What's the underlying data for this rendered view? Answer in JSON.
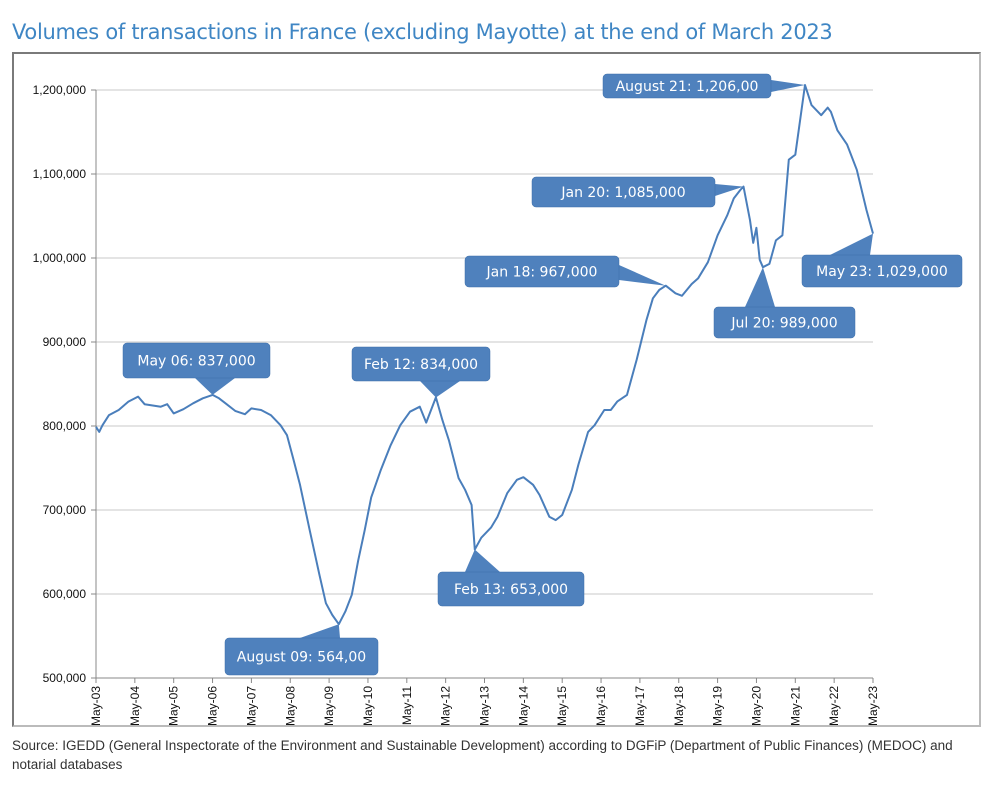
{
  "chart_data": {
    "type": "line",
    "title": "Volumes of transactions in France (excluding Mayotte) at the end of March 2023",
    "xlabel": "",
    "ylabel": "",
    "ylim": [
      500000,
      1200000
    ],
    "yticks": [
      "500,000",
      "600,000",
      "700,000",
      "800,000",
      "900,000",
      "1,000,000",
      "1,100,000",
      "1,200,000"
    ],
    "ytick_values": [
      500000,
      600000,
      700000,
      800000,
      900000,
      1000000,
      1100000,
      1200000
    ],
    "xticks": [
      "May-03",
      "May-04",
      "May-05",
      "May-06",
      "May-07",
      "May-08",
      "May-09",
      "May-10",
      "May-11",
      "May-12",
      "May-13",
      "May-14",
      "May-15",
      "May-16",
      "May-17",
      "May-18",
      "May-19",
      "May-20",
      "May-21",
      "May-22",
      "May-23"
    ],
    "grid": "horizontal",
    "line_color": "#4a7ebb",
    "series": [
      {
        "x": [
          "2003-05",
          "2003-06",
          "2003-07",
          "2003-09",
          "2003-12",
          "2004-03",
          "2004-06",
          "2004-08",
          "2005-01",
          "2005-03",
          "2005-05",
          "2005-08",
          "2005-11",
          "2006-02",
          "2006-05",
          "2006-07",
          "2006-09",
          "2006-12",
          "2007-03",
          "2007-05",
          "2007-08",
          "2007-11",
          "2008-02",
          "2008-04",
          "2008-06",
          "2008-08",
          "2008-11",
          "2009-02",
          "2009-04",
          "2009-06",
          "2009-08",
          "2009-10",
          "2009-12",
          "2010-02",
          "2010-04",
          "2010-06",
          "2010-09",
          "2010-12",
          "2011-03",
          "2011-06",
          "2011-09",
          "2011-11",
          "2012-02",
          "2012-04",
          "2012-06",
          "2012-09",
          "2012-11",
          "2013-01",
          "2013-02",
          "2013-04",
          "2013-07",
          "2013-09",
          "2013-12",
          "2014-03",
          "2014-05",
          "2014-08",
          "2014-10",
          "2015-01",
          "2015-03",
          "2015-05",
          "2015-08",
          "2015-10",
          "2016-01",
          "2016-03",
          "2016-06",
          "2016-08",
          "2016-10",
          "2017-01",
          "2017-04",
          "2017-07",
          "2017-09",
          "2017-11",
          "2018-01",
          "2018-04",
          "2018-06",
          "2018-09",
          "2018-11",
          "2019-02",
          "2019-05",
          "2019-08",
          "2019-10",
          "2019-12",
          "2020-01",
          "2020-03",
          "2020-04",
          "2020-05",
          "2020-06",
          "2020-07",
          "2020-09",
          "2020-11",
          "2021-01",
          "2021-03",
          "2021-05",
          "2021-08",
          "2021-10",
          "2022-01",
          "2022-03",
          "2022-04",
          "2022-06",
          "2022-09",
          "2022-12",
          "2023-03",
          "2023-05"
        ],
        "y": [
          799000,
          793000,
          801000,
          813000,
          819000,
          829000,
          835000,
          826000,
          823000,
          826000,
          815000,
          820000,
          827000,
          833000,
          837000,
          833000,
          827000,
          818000,
          814000,
          821000,
          819000,
          813000,
          801000,
          789000,
          760000,
          730000,
          676000,
          623000,
          589000,
          575000,
          564000,
          579000,
          599000,
          640000,
          676000,
          715000,
          748000,
          777000,
          801000,
          817000,
          823000,
          804000,
          834000,
          807000,
          783000,
          738000,
          724000,
          706000,
          653000,
          667000,
          679000,
          692000,
          720000,
          736000,
          739000,
          730000,
          718000,
          692000,
          688000,
          694000,
          724000,
          754000,
          793000,
          801000,
          819000,
          819000,
          829000,
          837000,
          879000,
          926000,
          952000,
          962000,
          967000,
          958000,
          955000,
          969000,
          976000,
          995000,
          1027000,
          1051000,
          1071000,
          1081000,
          1085000,
          1045000,
          1018000,
          1036000,
          998000,
          989000,
          993000,
          1021000,
          1027000,
          1117000,
          1123000,
          1206000,
          1182000,
          1170000,
          1179000,
          1174000,
          1152000,
          1135000,
          1105000,
          1057000,
          1029000
        ]
      }
    ],
    "annotations": [
      {
        "label": "May 06: 837,000",
        "x": "2006-05",
        "y": 837000
      },
      {
        "label": "August  09: 564,00",
        "x": "2009-08",
        "y": 564000
      },
      {
        "label": "Feb 12: 834,000",
        "x": "2012-02",
        "y": 834000
      },
      {
        "label": "Feb 13: 653,000",
        "x": "2013-02",
        "y": 653000
      },
      {
        "label": "Jan 18: 967,000",
        "x": "2018-01",
        "y": 967000
      },
      {
        "label": "Jan 20: 1,085,000",
        "x": "2020-01",
        "y": 1085000
      },
      {
        "label": "Jul 20: 989,000",
        "x": "2020-07",
        "y": 989000
      },
      {
        "label": "August  21: 1,206,00",
        "x": "2021-08",
        "y": 1206000
      },
      {
        "label": "May 23: 1,029,000",
        "x": "2023-05",
        "y": 1029000
      }
    ],
    "callout_color": "#4f81bd"
  },
  "source": "Source: IGEDD (General Inspectorate of the Environment and Sustainable Development) according to DGFiP (Department of Public Finances) (MEDOC) and notarial databases"
}
